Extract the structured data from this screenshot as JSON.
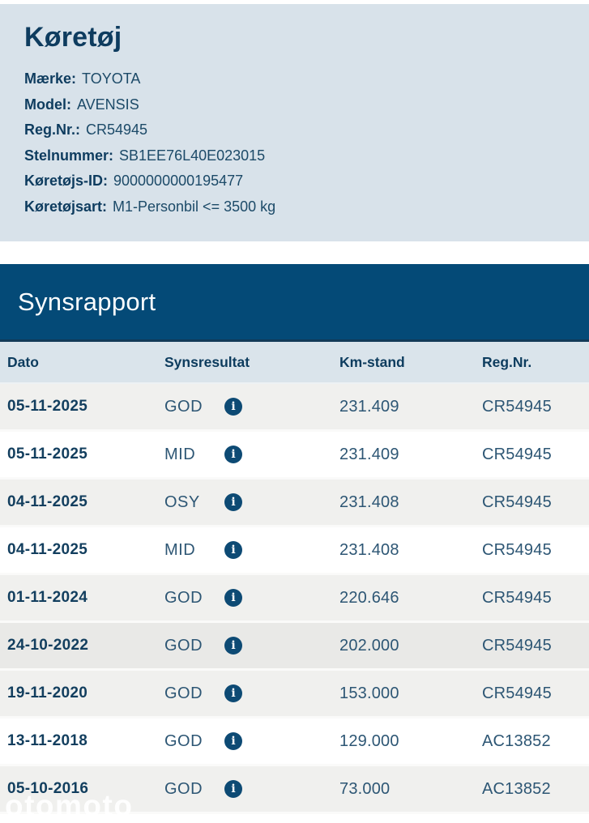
{
  "vehicle": {
    "title": "Køretøj",
    "fields": [
      {
        "label": "Mærke:",
        "value": "TOYOTA"
      },
      {
        "label": "Model:",
        "value": "AVENSIS"
      },
      {
        "label": "Reg.Nr.:",
        "value": "CR54945"
      },
      {
        "label": "Stelnummer:",
        "value": "SB1EE76L40E023015"
      },
      {
        "label": "Køretøjs-ID:",
        "value": "9000000000195477"
      },
      {
        "label": "Køretøjsart:",
        "value": "M1-Personbil <= 3500 kg"
      }
    ]
  },
  "report": {
    "title": "Synsrapport",
    "columns": [
      "Dato",
      "Synsresultat",
      "Km-stand",
      "Reg.Nr."
    ],
    "rows": [
      {
        "date": "05-11-2025",
        "result": "GOD",
        "km": "231.409",
        "reg": "CR54945"
      },
      {
        "date": "05-11-2025",
        "result": "MID",
        "km": "231.409",
        "reg": "CR54945"
      },
      {
        "date": "04-11-2025",
        "result": "OSY",
        "km": "231.408",
        "reg": "CR54945"
      },
      {
        "date": "04-11-2025",
        "result": "MID",
        "km": "231.408",
        "reg": "CR54945"
      },
      {
        "date": "01-11-2024",
        "result": "GOD",
        "km": "220.646",
        "reg": "CR54945"
      },
      {
        "date": "24-10-2022",
        "result": "GOD",
        "km": "202.000",
        "reg": "CR54945"
      },
      {
        "date": "19-11-2020",
        "result": "GOD",
        "km": "153.000",
        "reg": "CR54945"
      },
      {
        "date": "13-11-2018",
        "result": "GOD",
        "km": "129.000",
        "reg": "AC13852"
      },
      {
        "date": "05-10-2016",
        "result": "GOD",
        "km": "73.000",
        "reg": "AC13852"
      }
    ]
  },
  "icons": {
    "info": "i"
  },
  "watermark": "otomoto",
  "colors": {
    "panel_bg": "#d8e2ea",
    "bar_bg": "#044a77",
    "header_bg": "#dae4eb",
    "navy_text": "#0e3c5f",
    "value_text": "#2d5674",
    "row_gray": "#f0f0ee",
    "row_dark": "#e9e9e7",
    "icon_bg": "#0d4a74"
  }
}
